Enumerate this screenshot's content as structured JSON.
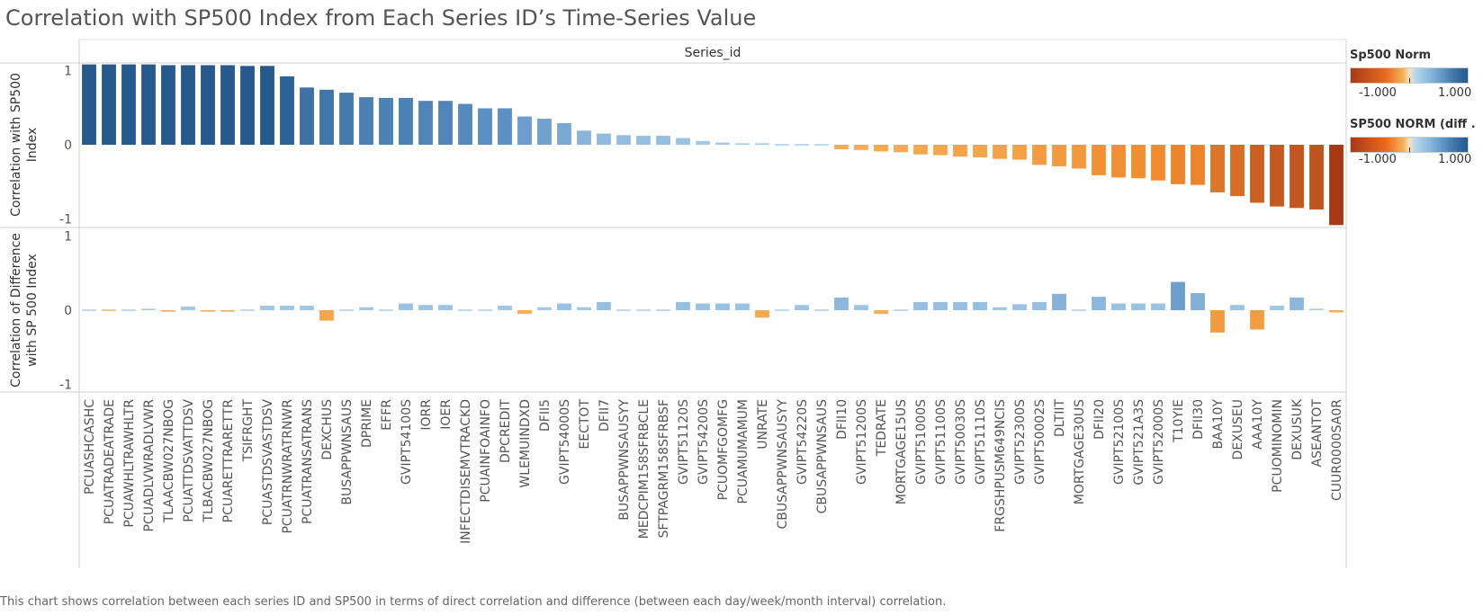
{
  "title": "Correlation with SP500 Index from Each Series ID’s Time-Series Value",
  "footer": "This chart shows correlation between each series ID and SP500 in terms of direct correlation and difference (between each day/week/month interval) correlation.",
  "legend": [
    {
      "title": "Sp500 Norm",
      "min": "-1.000",
      "max": "1.000"
    },
    {
      "title": "SP500 NORM (diff ..",
      "min": "-1.000",
      "max": "1.000"
    }
  ],
  "colors": {
    "neg_dark": "#a63a17",
    "neg_mid": "#f08a2d",
    "neg_light": "#f6b15a",
    "pos_light": "#a8cde9",
    "pos_mid": "#5a8fc4",
    "pos_dark": "#265a8f",
    "grid": "#d9d9d9"
  },
  "chart_data": {
    "type": "bar",
    "column_header": "Series_id",
    "categories": [
      "PCUASHCASHC",
      "PCUATRADEATRADE",
      "PCUAWHLTRAWHLTR",
      "PCUADLVWRADLVWR",
      "TLAACBW027NBOG",
      "PCUATTDSVATTDSV",
      "TLBACBW027NBOG",
      "PCUARETTRARETTR",
      "TSIFRGHT",
      "PCUASTDSVASTDSV",
      "PCUATRNWRATRNWR",
      "PCUATRANSATRANS",
      "DEXCHUS",
      "BUSAPPWNSAUS",
      "DPRIME",
      "EFFR",
      "GVIPT54100S",
      "IORR",
      "IOER",
      "INFECTDISEMVTRACKD",
      "PCUAINFOAINFO",
      "DPCREDIT",
      "WLEMUINDXD",
      "DFII5",
      "GVIPT54000S",
      "EECTOT",
      "DFII7",
      "BUSAPPWNSAUSYY",
      "MEDCPIM158SFRBCLE",
      "SFTPAGRM158SFRBSF",
      "GVIPT51120S",
      "GVIPT54200S",
      "PCUOMFGOMFG",
      "PCUAMUMAMUM",
      "UNRATE",
      "CBUSAPPWNSAUSYY",
      "GVIPT54220S",
      "CBUSAPPWNSAUS",
      "DFII10",
      "GVIPT51200S",
      "TEDRATE",
      "MORTGAGE15US",
      "GVIPT51000S",
      "GVIPT51100S",
      "GVIPT50030S",
      "GVIPT51110S",
      "FRGSHPUSM649NCIS",
      "GVIPT52300S",
      "GVIPT50002S",
      "DLTIIT",
      "MORTGAGE30US",
      "DFII20",
      "GVIPT52100S",
      "GVIPT521A3S",
      "GVIPT52000S",
      "T10YIE",
      "DFII30",
      "BAA10Y",
      "DEXUSEU",
      "AAA10Y",
      "PCUOMINOMIN",
      "DEXUSUK",
      "ASEANTOT",
      "CUUR0000SA0R"
    ],
    "series": [
      {
        "values": [
          1.08,
          1.08,
          1.08,
          1.08,
          1.07,
          1.07,
          1.07,
          1.07,
          1.06,
          1.06,
          0.92,
          0.77,
          0.74,
          0.7,
          0.64,
          0.63,
          0.63,
          0.59,
          0.59,
          0.55,
          0.49,
          0.49,
          0.38,
          0.35,
          0.29,
          0.19,
          0.15,
          0.13,
          0.12,
          0.12,
          0.09,
          0.05,
          0.03,
          0.02,
          0.02,
          0.01,
          0.01,
          0.0,
          -0.06,
          -0.07,
          -0.09,
          -0.1,
          -0.13,
          -0.14,
          -0.16,
          -0.17,
          -0.19,
          -0.2,
          -0.27,
          -0.29,
          -0.32,
          -0.41,
          -0.44,
          -0.45,
          -0.48,
          -0.53,
          -0.54,
          -0.64,
          -0.69,
          -0.78,
          -0.83,
          -0.85,
          -0.87,
          -1.08
        ]
      },
      {
        "values": [
          0.0,
          -0.01,
          0.0,
          0.02,
          -0.02,
          0.05,
          -0.02,
          -0.02,
          0.0,
          0.06,
          0.06,
          0.06,
          -0.14,
          0.0,
          0.04,
          0.0,
          0.09,
          0.07,
          0.07,
          0.0,
          0.0,
          0.06,
          -0.05,
          0.04,
          0.09,
          0.04,
          0.11,
          0.0,
          0.0,
          0.0,
          0.11,
          0.09,
          0.09,
          0.09,
          -0.1,
          0.0,
          0.07,
          0.0,
          0.17,
          0.07,
          -0.05,
          0.0,
          0.11,
          0.11,
          0.11,
          0.11,
          0.04,
          0.08,
          0.11,
          0.22,
          0.0,
          0.18,
          0.09,
          0.09,
          0.09,
          0.38,
          0.23,
          -0.3,
          0.07,
          -0.26,
          0.06,
          0.17,
          0.02,
          -0.03
        ]
      }
    ],
    "panels": [
      {
        "ylabel": "Correlation with SP500 Index",
        "ylim": [
          -1.1,
          1.1
        ],
        "ticks": [
          1,
          0,
          -1
        ]
      },
      {
        "ylabel": "Correlation of Difference with SP 500 Index",
        "ylim": [
          -1.1,
          1.1
        ],
        "ticks": [
          1,
          0,
          -1
        ]
      }
    ]
  }
}
